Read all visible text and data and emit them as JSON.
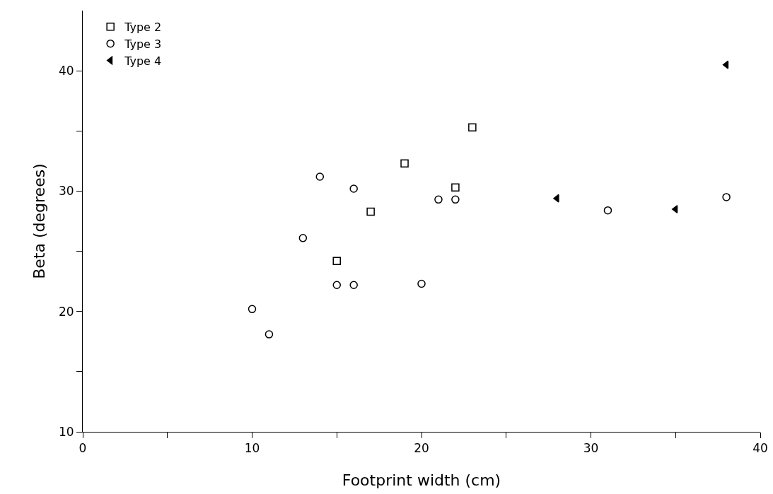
{
  "chart_data": {
    "type": "scatter",
    "xlabel": "Footprint width (cm)",
    "ylabel": "Beta (degrees)",
    "xlim": [
      0,
      40
    ],
    "ylim": [
      10,
      45
    ],
    "xticks": [
      0,
      {
        "value": 5,
        "label": null
      },
      10,
      {
        "value": 15,
        "label": null
      },
      20,
      {
        "value": 25,
        "label": null
      },
      30,
      {
        "value": 35,
        "label": null
      },
      40
    ],
    "yticks": [
      10,
      {
        "value": 15,
        "label": null
      },
      20,
      {
        "value": 25,
        "label": null
      },
      30,
      {
        "value": 35,
        "label": null
      },
      40
    ],
    "grid": false,
    "legend": "top left",
    "series": [
      {
        "name": "Type 2",
        "color": "#000000",
        "marker": "square",
        "x": [
          15,
          17,
          19,
          22,
          23
        ],
        "values": [
          24.2,
          28.3,
          32.3,
          30.3,
          35.3
        ]
      },
      {
        "name": "Type 3",
        "color": "#000000",
        "marker": "circle",
        "x": [
          10,
          11,
          13,
          14,
          15,
          16,
          16,
          20,
          21,
          22,
          31,
          38
        ],
        "values": [
          20.2,
          18.1,
          26.1,
          31.2,
          22.2,
          30.2,
          22.2,
          22.3,
          29.3,
          29.3,
          28.4,
          29.5
        ]
      },
      {
        "name": "Type 4",
        "color": "#000000",
        "marker": "triangle",
        "x": [
          28,
          35,
          38
        ],
        "values": [
          29.4,
          28.5,
          40.5
        ]
      }
    ]
  }
}
